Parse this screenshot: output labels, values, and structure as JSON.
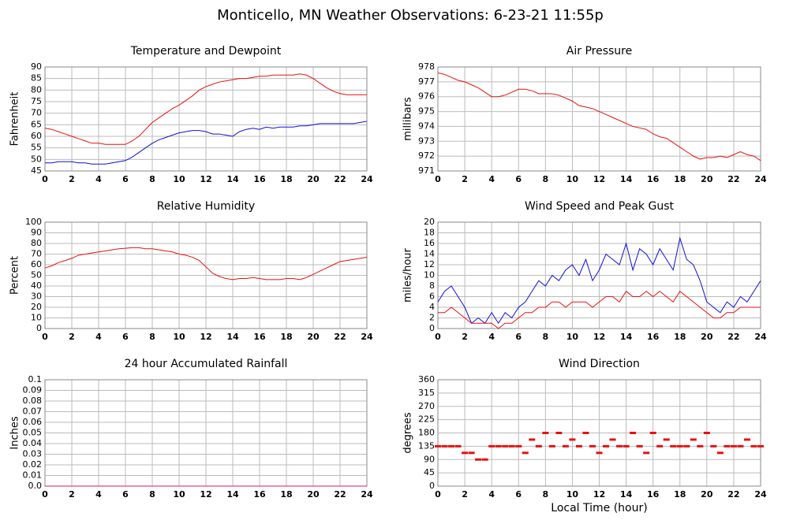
{
  "title": "Monticello, MN Weather Observations: 6-23-21 11:55p",
  "chart_data": [
    {
      "type": "line",
      "title": "Temperature and Dewpoint",
      "y_label": "Fahrenheit",
      "x": [
        0,
        0.5,
        1,
        1.5,
        2,
        2.5,
        3,
        3.5,
        4,
        4.5,
        5,
        5.5,
        6,
        6.5,
        7,
        7.5,
        8,
        8.5,
        9,
        9.5,
        10,
        10.5,
        11,
        11.5,
        12,
        12.5,
        13,
        13.5,
        14,
        14.5,
        15,
        15.5,
        16,
        16.5,
        17,
        17.5,
        18,
        18.5,
        19,
        19.5,
        20,
        20.5,
        21,
        21.5,
        22,
        22.5,
        23,
        23.5,
        24
      ],
      "series": [
        {
          "color": "#e81010",
          "values": [
            63.5,
            63,
            62,
            61,
            60,
            59,
            58,
            57,
            57,
            56.5,
            56.5,
            56.5,
            56.5,
            58,
            60,
            63,
            66,
            68,
            70,
            72,
            73.5,
            75.5,
            77.5,
            80,
            81.5,
            82.5,
            83.5,
            84,
            84.5,
            85,
            85,
            85.5,
            86,
            86,
            86.5,
            86.5,
            86.5,
            86.5,
            87,
            86.5,
            85,
            83,
            81,
            79.5,
            78.5,
            78,
            78,
            78,
            78
          ]
        },
        {
          "color": "#1010d8",
          "values": [
            48.5,
            48.5,
            49,
            49,
            49,
            48.5,
            48.5,
            48,
            48,
            48,
            48.5,
            49,
            49.5,
            51,
            53,
            55,
            57,
            58.5,
            59.5,
            60.5,
            61.5,
            62,
            62.5,
            62.5,
            62,
            61,
            61,
            60.5,
            60,
            62,
            63,
            63.5,
            63,
            64,
            63.5,
            64,
            64,
            64,
            64.5,
            64.5,
            65,
            65.5,
            65.5,
            65.5,
            65.5,
            65.5,
            65.5,
            66,
            66.5
          ]
        }
      ],
      "xlim": [
        0,
        24
      ],
      "xticks": [
        0,
        2,
        4,
        6,
        8,
        10,
        12,
        14,
        16,
        18,
        20,
        22,
        24
      ],
      "ylim": [
        45,
        90
      ],
      "yticks": [
        45,
        50,
        55,
        60,
        65,
        70,
        75,
        80,
        85,
        90
      ],
      "grid": true
    },
    {
      "type": "line",
      "title": "Air Pressure",
      "y_label": "millibars",
      "x": [
        0,
        0.5,
        1,
        1.5,
        2,
        2.5,
        3,
        3.5,
        4,
        4.5,
        5,
        5.5,
        6,
        6.5,
        7,
        7.5,
        8,
        8.5,
        9,
        9.5,
        10,
        10.5,
        11,
        11.5,
        12,
        12.5,
        13,
        13.5,
        14,
        14.5,
        15,
        15.5,
        16,
        16.5,
        17,
        17.5,
        18,
        18.5,
        19,
        19.5,
        20,
        20.5,
        21,
        21.5,
        22,
        22.5,
        23,
        23.5,
        24
      ],
      "series": [
        {
          "color": "#e81010",
          "values": [
            977.6,
            977.5,
            977.3,
            977.1,
            977,
            976.8,
            976.6,
            976.3,
            976,
            976,
            976.1,
            976.3,
            976.5,
            976.5,
            976.4,
            976.2,
            976.2,
            976.2,
            976.1,
            975.9,
            975.7,
            975.4,
            975.3,
            975.2,
            975,
            974.8,
            974.6,
            974.4,
            974.2,
            974,
            973.9,
            973.8,
            973.5,
            973.3,
            973.2,
            972.9,
            972.6,
            972.3,
            972,
            971.8,
            971.9,
            971.9,
            972,
            971.9,
            972.1,
            972.3,
            972.1,
            972,
            971.7
          ]
        }
      ],
      "xlim": [
        0,
        24
      ],
      "xticks": [
        0,
        2,
        4,
        6,
        8,
        10,
        12,
        14,
        16,
        18,
        20,
        22,
        24
      ],
      "ylim": [
        971,
        978
      ],
      "yticks": [
        971,
        972,
        973,
        974,
        975,
        976,
        977,
        978
      ],
      "grid": true
    },
    {
      "type": "line",
      "title": "Relative Humidity",
      "y_label": "Percent",
      "x": [
        0,
        0.5,
        1,
        1.5,
        2,
        2.5,
        3,
        3.5,
        4,
        4.5,
        5,
        5.5,
        6,
        6.5,
        7,
        7.5,
        8,
        8.5,
        9,
        9.5,
        10,
        10.5,
        11,
        11.5,
        12,
        12.5,
        13,
        13.5,
        14,
        14.5,
        15,
        15.5,
        16,
        16.5,
        17,
        17.5,
        18,
        18.5,
        19,
        19.5,
        20,
        20.5,
        21,
        21.5,
        22,
        22.5,
        23,
        23.5,
        24
      ],
      "series": [
        {
          "color": "#e81010",
          "values": [
            57,
            59,
            62,
            64,
            66,
            69,
            70,
            71,
            72,
            73,
            74,
            75,
            75.5,
            76,
            76,
            75,
            75,
            74,
            73,
            72,
            70,
            69,
            67,
            64,
            58,
            52,
            49,
            47,
            46,
            47,
            47,
            48,
            47,
            46,
            46,
            46,
            47,
            47,
            46,
            48,
            51,
            54,
            57,
            60,
            63,
            64,
            65,
            66,
            67
          ]
        }
      ],
      "xlim": [
        0,
        24
      ],
      "xticks": [
        0,
        2,
        4,
        6,
        8,
        10,
        12,
        14,
        16,
        18,
        20,
        22,
        24
      ],
      "ylim": [
        0,
        100
      ],
      "yticks": [
        0,
        10,
        20,
        30,
        40,
        50,
        60,
        70,
        80,
        90,
        100
      ],
      "grid": true
    },
    {
      "type": "line",
      "title": "Wind Speed and Peak Gust",
      "y_label": "miles/hour",
      "x": [
        0,
        0.5,
        1,
        1.5,
        2,
        2.5,
        3,
        3.5,
        4,
        4.5,
        5,
        5.5,
        6,
        6.5,
        7,
        7.5,
        8,
        8.5,
        9,
        9.5,
        10,
        10.5,
        11,
        11.5,
        12,
        12.5,
        13,
        13.5,
        14,
        14.5,
        15,
        15.5,
        16,
        16.5,
        17,
        17.5,
        18,
        18.5,
        19,
        19.5,
        20,
        20.5,
        21,
        21.5,
        22,
        22.5,
        23,
        23.5,
        24
      ],
      "series": [
        {
          "color": "#1010d8",
          "values": [
            5,
            7,
            8,
            6,
            4,
            1,
            2,
            1,
            3,
            1,
            3,
            2,
            4,
            5,
            7,
            9,
            8,
            10,
            9,
            11,
            12,
            10,
            13,
            9,
            11,
            14,
            13,
            12,
            16,
            11,
            15,
            14,
            12,
            15,
            13,
            11,
            17,
            13,
            12,
            9,
            5,
            4,
            3,
            5,
            4,
            6,
            5,
            7,
            9
          ]
        },
        {
          "color": "#e81010",
          "values": [
            3,
            3,
            4,
            3,
            2,
            1,
            1,
            1,
            1,
            0,
            1,
            1,
            2,
            3,
            3,
            4,
            4,
            5,
            5,
            4,
            5,
            5,
            5,
            4,
            5,
            6,
            6,
            5,
            7,
            6,
            6,
            7,
            6,
            7,
            6,
            5,
            7,
            6,
            5,
            4,
            3,
            2,
            2,
            3,
            3,
            4,
            4,
            4,
            4
          ]
        }
      ],
      "xlim": [
        0,
        24
      ],
      "xticks": [
        0,
        2,
        4,
        6,
        8,
        10,
        12,
        14,
        16,
        18,
        20,
        22,
        24
      ],
      "ylim": [
        0,
        20
      ],
      "yticks": [
        0,
        2,
        4,
        6,
        8,
        10,
        12,
        14,
        16,
        18,
        20
      ],
      "grid": true
    },
    {
      "type": "line",
      "title": "24 hour Accumulated Rainfall",
      "y_label": "Inches",
      "x": [
        0,
        24
      ],
      "series": [
        {
          "color": "#e0106a",
          "values": [
            0,
            0
          ]
        }
      ],
      "xlim": [
        0,
        24
      ],
      "xticks": [
        0,
        2,
        4,
        6,
        8,
        10,
        12,
        14,
        16,
        18,
        20,
        22,
        24
      ],
      "ylim": [
        0,
        0.1
      ],
      "yticks": [
        {
          "value": 0,
          "label": "0.0"
        },
        0.01,
        0.02,
        0.03,
        0.04,
        0.05,
        0.06,
        0.07,
        0.08,
        0.09,
        0.1
      ],
      "grid": true
    },
    {
      "type": "scatter",
      "title": "Wind Direction",
      "y_label": "degrees",
      "x_label": "Local Time (hour)",
      "x": [
        0,
        0.5,
        1,
        1.5,
        2,
        2.5,
        3,
        3.5,
        4,
        4.5,
        5,
        5.5,
        6,
        6.5,
        7,
        7.5,
        8,
        8.5,
        9,
        9.5,
        10,
        10.5,
        11,
        11.5,
        12,
        12.5,
        13,
        13.5,
        14,
        14.5,
        15,
        15.5,
        16,
        16.5,
        17,
        17.5,
        18,
        18.5,
        19,
        19.5,
        20,
        20.5,
        21,
        21.5,
        22,
        22.5,
        23,
        23.5,
        24
      ],
      "series": [
        {
          "color": "#e81010",
          "values": [
            135,
            135,
            135,
            135,
            112.5,
            112.5,
            90,
            90,
            135,
            135,
            135,
            135,
            135,
            112.5,
            157.5,
            135,
            180,
            135,
            180,
            135,
            157.5,
            135,
            180,
            135,
            112.5,
            135,
            157.5,
            135,
            135,
            180,
            135,
            112.5,
            180,
            135,
            157.5,
            135,
            135,
            135,
            157.5,
            135,
            180,
            135,
            112.5,
            135,
            135,
            135,
            157.5,
            135,
            135
          ]
        }
      ],
      "xlim": [
        0,
        24
      ],
      "xticks": [
        0,
        2,
        4,
        6,
        8,
        10,
        12,
        14,
        16,
        18,
        20,
        22,
        24
      ],
      "ylim": [
        0,
        360
      ],
      "yticks": [
        0,
        45,
        90,
        135,
        180,
        225,
        270,
        315,
        360
      ],
      "grid": true
    }
  ]
}
